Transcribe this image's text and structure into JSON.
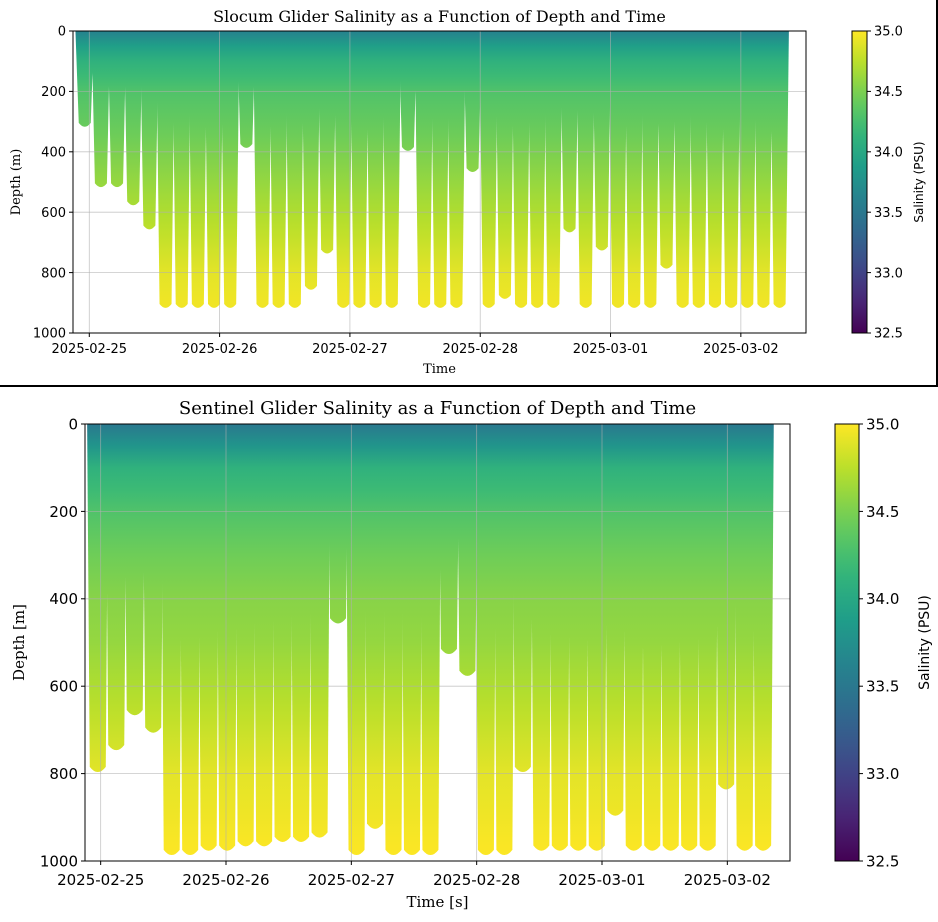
{
  "chart_data": [
    {
      "type": "scatter",
      "title": "Slocum Glider Salinity as a Function of Depth and Time",
      "xlabel": "Time",
      "ylabel": "Depth (m)",
      "colorbar_label": "Salinity (PSU)",
      "colormap": "viridis",
      "x_range": [
        "2025-02-24T21:00",
        "2025-03-02T12:00"
      ],
      "ylim": [
        1000,
        0
      ],
      "y_ticks": [
        "0",
        "200",
        "400",
        "600",
        "800",
        "1000"
      ],
      "x_ticks": [
        "2025-02-25",
        "2025-02-26",
        "2025-02-27",
        "2025-02-28",
        "2025-03-01",
        "2025-03-02"
      ],
      "colorbar_range": [
        32.5,
        35.0
      ],
      "colorbar_ticks": [
        "35.0",
        "34.5",
        "34.0",
        "33.5",
        "33.0",
        "32.5"
      ],
      "grid": true,
      "salinity_profile": {
        "depth_m": [
          0,
          50,
          100,
          200,
          300,
          400,
          500,
          600,
          700,
          800,
          900
        ],
        "salinity_psu": [
          33.6,
          33.9,
          34.1,
          34.3,
          34.4,
          34.5,
          34.6,
          34.7,
          34.8,
          34.9,
          34.95
        ]
      },
      "dive_max_depth_m": [
        310,
        510,
        510,
        570,
        650,
        910,
        910,
        910,
        910,
        910,
        380,
        910,
        910,
        910,
        850,
        730,
        910,
        910,
        910,
        910,
        390,
        910,
        910,
        910,
        460,
        910,
        880,
        910,
        910,
        910,
        660,
        910,
        720,
        910,
        910,
        910,
        780,
        910,
        910,
        910,
        910,
        910,
        910,
        910
      ]
    },
    {
      "type": "scatter",
      "title": "Sentinel Glider Salinity as a Function of Depth and Time",
      "xlabel": "Time [s]",
      "ylabel": "Depth [m]",
      "colorbar_label": "Salinity (PSU)",
      "colormap": "viridis",
      "x_range": [
        "2025-02-24T21:00",
        "2025-03-02T12:00"
      ],
      "ylim": [
        1000,
        0
      ],
      "y_ticks": [
        "0",
        "200",
        "400",
        "600",
        "800",
        "1000"
      ],
      "x_ticks": [
        "2025-02-25",
        "2025-02-26",
        "2025-02-27",
        "2025-02-28",
        "2025-03-01",
        "2025-03-02"
      ],
      "colorbar_range": [
        32.5,
        35.0
      ],
      "colorbar_ticks": [
        "35.0",
        "34.5",
        "34.0",
        "33.5",
        "33.0",
        "32.5"
      ],
      "grid": true,
      "salinity_profile": {
        "depth_m": [
          0,
          50,
          100,
          200,
          300,
          400,
          500,
          600,
          700,
          800,
          900,
          980
        ],
        "salinity_psu": [
          33.5,
          33.8,
          34.1,
          34.3,
          34.45,
          34.55,
          34.6,
          34.7,
          34.8,
          34.9,
          34.95,
          35.0
        ]
      },
      "dive_max_depth_m": [
        790,
        740,
        660,
        700,
        980,
        980,
        970,
        970,
        960,
        960,
        950,
        950,
        940,
        450,
        980,
        920,
        980,
        980,
        980,
        520,
        570,
        980,
        980,
        790,
        970,
        970,
        970,
        970,
        890,
        970,
        970,
        970,
        970,
        970,
        830,
        970,
        970
      ]
    }
  ]
}
